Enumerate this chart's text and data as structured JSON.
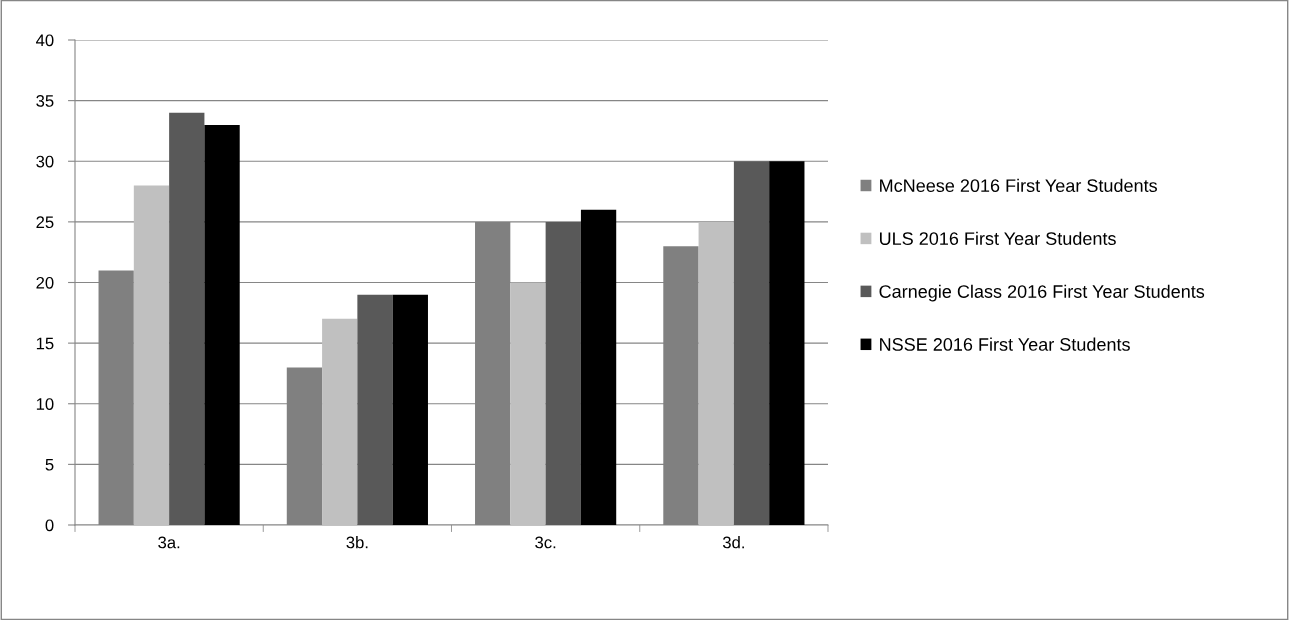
{
  "chart_data": {
    "type": "bar",
    "categories": [
      "3a.",
      "3b.",
      "3c.",
      "3d."
    ],
    "series": [
      {
        "name": "McNeese 2016 First Year Students",
        "color": "#808080",
        "values": [
          21,
          13,
          25,
          23
        ]
      },
      {
        "name": "ULS 2016 First Year Students",
        "color": "#c0c0c0",
        "values": [
          28,
          17,
          20,
          25
        ]
      },
      {
        "name": "Carnegie Class 2016 First Year Students",
        "color": "#595959",
        "values": [
          34,
          19,
          25,
          30
        ]
      },
      {
        "name": "NSSE 2016 First Year Students",
        "color": "#000000",
        "values": [
          33,
          19,
          26,
          30
        ]
      }
    ],
    "ylim": [
      0,
      40
    ],
    "yticks": [
      0,
      5,
      10,
      15,
      20,
      25,
      30,
      35,
      40
    ],
    "grid": "y",
    "legend": "right"
  }
}
